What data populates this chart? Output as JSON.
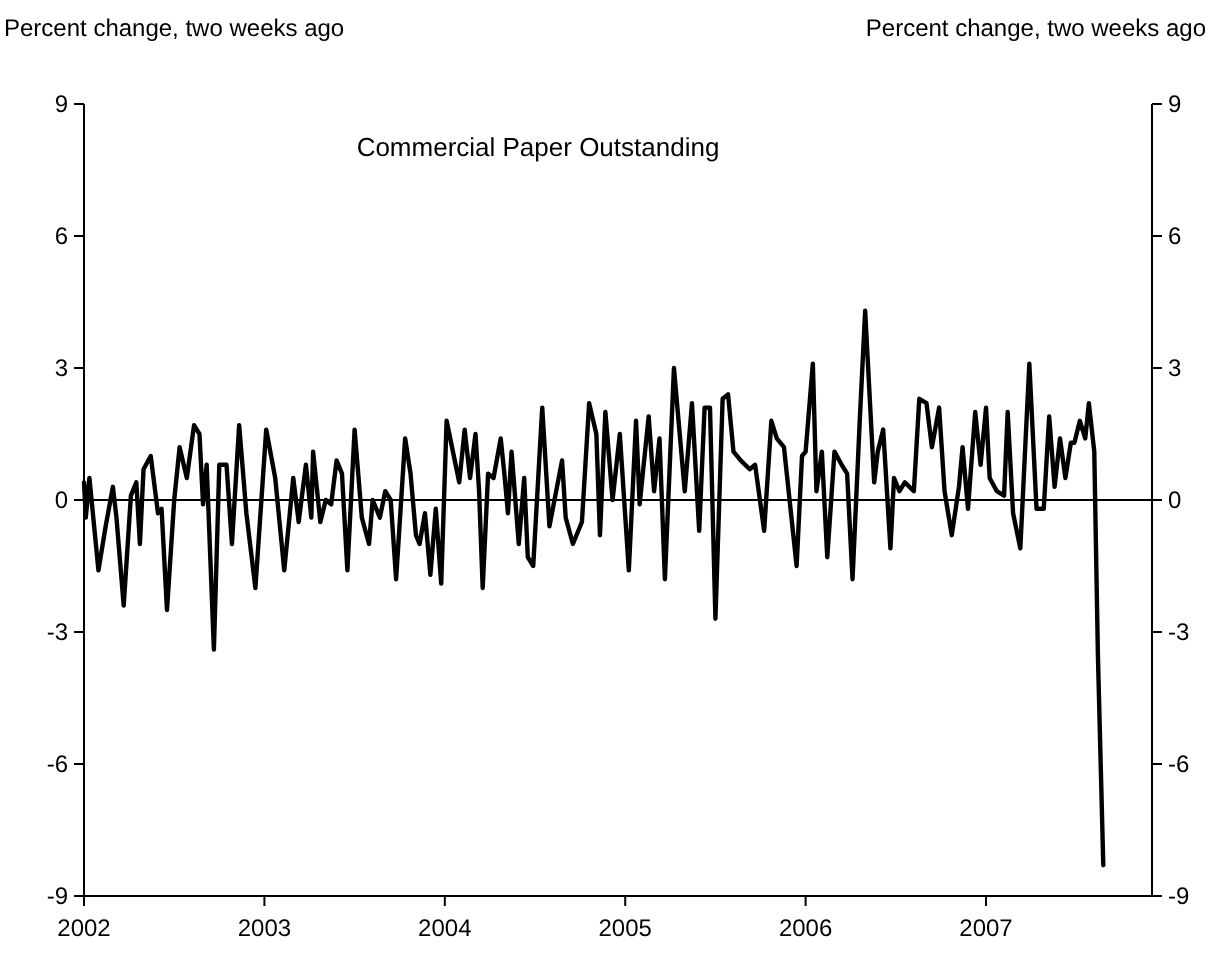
{
  "chart_data": {
    "type": "line",
    "title": "Commercial Paper Outstanding",
    "ylabel": "Percent change, two weeks ago",
    "y2label": "Percent change, two weeks ago",
    "xlim": [
      2002,
      2007.92
    ],
    "xticks": [
      2002,
      2003,
      2004,
      2005,
      2006,
      2007
    ],
    "ylim": [
      -9,
      9
    ],
    "yticks": [
      -9,
      -6,
      -3,
      0,
      3,
      6,
      9
    ],
    "y2lim": [
      -9,
      9
    ],
    "y2ticks": [
      -9,
      -6,
      -3,
      0,
      3,
      6,
      9
    ],
    "grid": false,
    "marker": "none",
    "line_style": "solid",
    "ref_lines": [
      {
        "axis": "y",
        "value": 0,
        "color": "#000000"
      }
    ],
    "series": [
      {
        "color": "#000000",
        "x": [
          2002.0,
          2002.01,
          2002.03,
          2002.08,
          2002.12,
          2002.16,
          2002.18,
          2002.22,
          2002.26,
          2002.29,
          2002.31,
          2002.33,
          2002.37,
          2002.41,
          2002.43,
          2002.46,
          2002.5,
          2002.53,
          2002.57,
          2002.61,
          2002.64,
          2002.66,
          2002.68,
          2002.72,
          2002.75,
          2002.79,
          2002.82,
          2002.86,
          2002.9,
          2002.95,
          2003.01,
          2003.06,
          2003.11,
          2003.16,
          2003.19,
          2003.23,
          2003.26,
          2003.27,
          2003.31,
          2003.34,
          2003.37,
          2003.4,
          2003.43,
          2003.46,
          2003.5,
          2003.54,
          2003.58,
          2003.6,
          2003.64,
          2003.67,
          2003.7,
          2003.73,
          2003.78,
          2003.81,
          2003.84,
          2003.86,
          2003.89,
          2003.92,
          2003.95,
          2003.98,
          2004.01,
          2004.04,
          2004.08,
          2004.11,
          2004.14,
          2004.17,
          2004.19,
          2004.21,
          2004.24,
          2004.27,
          2004.31,
          2004.33,
          2004.35,
          2004.37,
          2004.41,
          2004.44,
          2004.46,
          2004.49,
          2004.54,
          2004.58,
          2004.65,
          2004.67,
          2004.71,
          2004.76,
          2004.8,
          2004.84,
          2004.86,
          2004.89,
          2004.93,
          2004.97,
          2005.02,
          2005.06,
          2005.08,
          2005.13,
          2005.16,
          2005.19,
          2005.22,
          2005.27,
          2005.33,
          2005.37,
          2005.41,
          2005.44,
          2005.47,
          2005.5,
          2005.54,
          2005.57,
          2005.6,
          2005.64,
          2005.69,
          2005.72,
          2005.77,
          2005.81,
          2005.84,
          2005.88,
          2005.95,
          2005.98,
          2006.0,
          2006.04,
          2006.06,
          2006.09,
          2006.12,
          2006.16,
          2006.2,
          2006.23,
          2006.26,
          2006.3,
          2006.33,
          2006.38,
          2006.4,
          2006.43,
          2006.47,
          2006.49,
          2006.52,
          2006.55,
          2006.6,
          2006.63,
          2006.67,
          2006.7,
          2006.74,
          2006.77,
          2006.81,
          2006.85,
          2006.87,
          2006.9,
          2006.94,
          2006.97,
          2007.0,
          2007.02,
          2007.06,
          2007.1,
          2007.12,
          2007.15,
          2007.19,
          2007.24,
          2007.28,
          2007.32,
          2007.35,
          2007.38,
          2007.41,
          2007.44,
          2007.47,
          2007.49,
          2007.52,
          2007.55,
          2007.57,
          2007.6,
          2007.62,
          2007.65
        ],
        "values": [
          0.4,
          -0.4,
          0.5,
          -1.6,
          -0.6,
          0.3,
          -0.4,
          -2.4,
          0.1,
          0.4,
          -1.0,
          0.7,
          1.0,
          -0.3,
          -0.2,
          -2.5,
          0.0,
          1.2,
          0.5,
          1.7,
          1.5,
          -0.1,
          0.8,
          -3.4,
          0.8,
          0.8,
          -1.0,
          1.7,
          -0.3,
          -2.0,
          1.6,
          0.5,
          -1.6,
          0.5,
          -0.5,
          0.8,
          -0.4,
          1.1,
          -0.5,
          0.0,
          -0.1,
          0.9,
          0.6,
          -1.6,
          1.6,
          -0.4,
          -1.0,
          0.0,
          -0.4,
          0.2,
          0.0,
          -1.8,
          1.4,
          0.6,
          -0.8,
          -1.0,
          -0.3,
          -1.7,
          -0.2,
          -1.9,
          1.8,
          1.2,
          0.4,
          1.6,
          0.5,
          1.5,
          0.2,
          -2.0,
          0.6,
          0.5,
          1.4,
          0.6,
          -0.3,
          1.1,
          -1.0,
          0.5,
          -1.3,
          -1.5,
          2.1,
          -0.6,
          0.9,
          -0.4,
          -1.0,
          -0.5,
          2.2,
          1.5,
          -0.8,
          2.0,
          0.0,
          1.5,
          -1.6,
          1.8,
          -0.1,
          1.9,
          0.2,
          1.4,
          -1.8,
          3.0,
          0.2,
          2.2,
          -0.7,
          2.1,
          2.1,
          -2.7,
          2.3,
          2.4,
          1.1,
          0.9,
          0.7,
          0.8,
          -0.7,
          1.8,
          1.4,
          1.2,
          -1.5,
          1.0,
          1.1,
          3.1,
          0.2,
          1.1,
          -1.3,
          1.1,
          0.8,
          0.6,
          -1.8,
          1.8,
          4.3,
          0.4,
          1.1,
          1.6,
          -1.1,
          0.5,
          0.2,
          0.4,
          0.2,
          2.3,
          2.2,
          1.2,
          2.1,
          0.2,
          -0.8,
          0.3,
          1.2,
          -0.2,
          2.0,
          0.8,
          2.1,
          0.5,
          0.2,
          0.1,
          2.0,
          -0.3,
          -1.1,
          3.1,
          -0.2,
          -0.2,
          1.9,
          0.3,
          1.4,
          0.5,
          1.3,
          1.3,
          1.8,
          1.4,
          2.2,
          1.1,
          -3.5,
          -8.3
        ]
      }
    ]
  }
}
